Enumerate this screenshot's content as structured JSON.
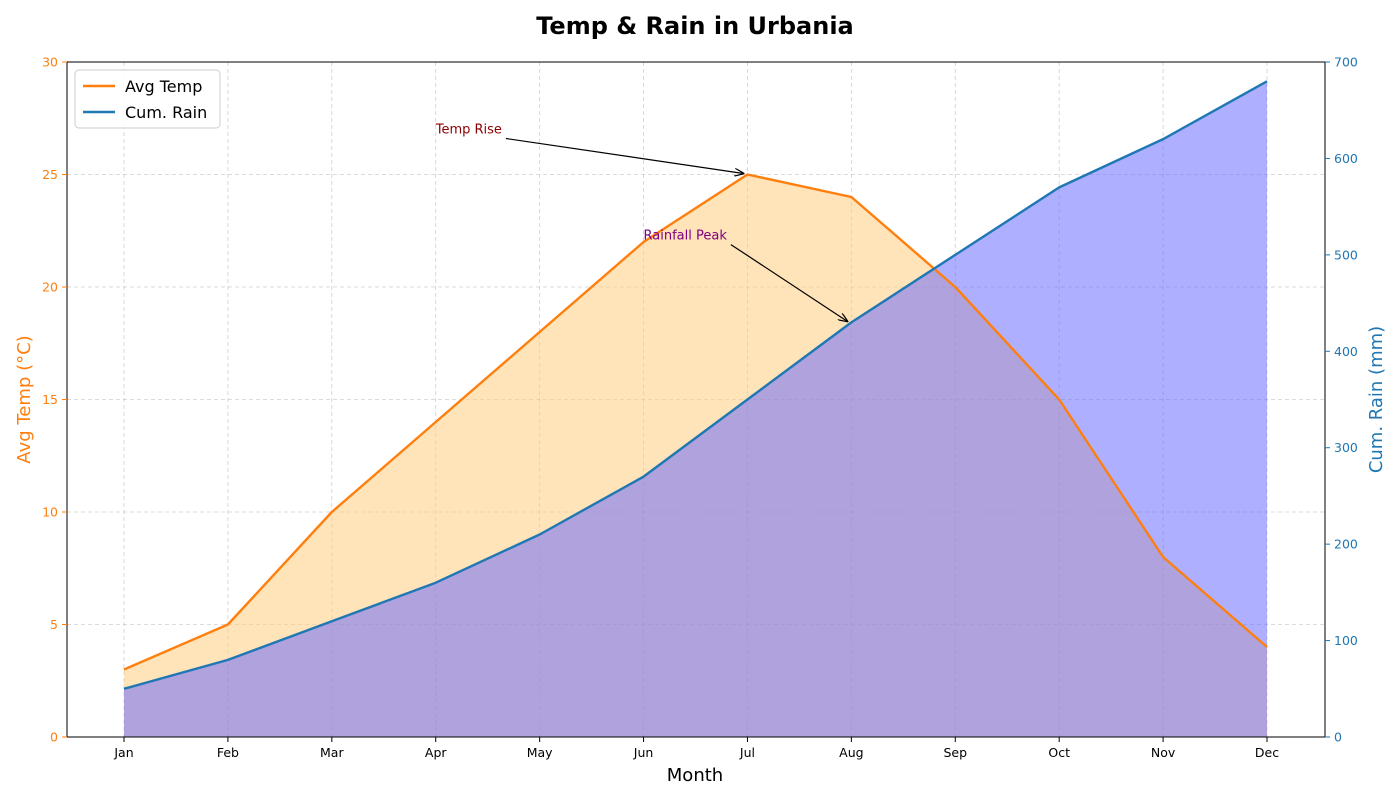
{
  "chart_data": {
    "type": "line",
    "title": "Temp & Rain in Urbania",
    "xlabel": "Month",
    "ylabel_left": "Avg Temp (°C)",
    "ylabel_right": "Cum. Rain (mm)",
    "categories": [
      "Jan",
      "Feb",
      "Mar",
      "Apr",
      "May",
      "Jun",
      "Jul",
      "Aug",
      "Sep",
      "Oct",
      "Nov",
      "Dec"
    ],
    "ylim_left": [
      0,
      30
    ],
    "yticks_left": [
      0,
      5,
      10,
      15,
      20,
      25,
      30
    ],
    "ylim_right": [
      0,
      700
    ],
    "yticks_right": [
      0,
      100,
      200,
      300,
      400,
      500,
      600,
      700
    ],
    "series": [
      {
        "name": "Avg Temp",
        "axis": "left",
        "color": "#ff7f0e",
        "fill_color": "#ffcc80",
        "values": [
          3,
          5,
          10,
          14,
          18,
          22,
          25,
          24,
          20,
          15,
          8,
          4
        ]
      },
      {
        "name": "Cum. Rain",
        "axis": "right",
        "color": "#1f77b4",
        "fill_color": "#6666ff",
        "values": [
          50,
          80,
          120,
          160,
          210,
          270,
          350,
          430,
          500,
          570,
          620,
          680
        ]
      }
    ],
    "annotations": [
      {
        "text": "Temp Rise",
        "color": "#8b0000",
        "point": {
          "category": "Jul",
          "value": 25,
          "axis": "left"
        },
        "text_anchor": {
          "category": "Apr",
          "value": 27,
          "axis": "left"
        }
      },
      {
        "text": "Rainfall Peak",
        "color": "#800080",
        "point": {
          "category": "Aug",
          "value": 430,
          "axis": "right"
        },
        "text_anchor": {
          "category": "Jun",
          "value": 520,
          "axis": "right"
        }
      }
    ],
    "grid": true,
    "legend_position": "top-left",
    "colors": {
      "left_axis": "#ff7f0e",
      "right_axis": "#1f77b4",
      "grid": "#b0b0b0"
    }
  }
}
